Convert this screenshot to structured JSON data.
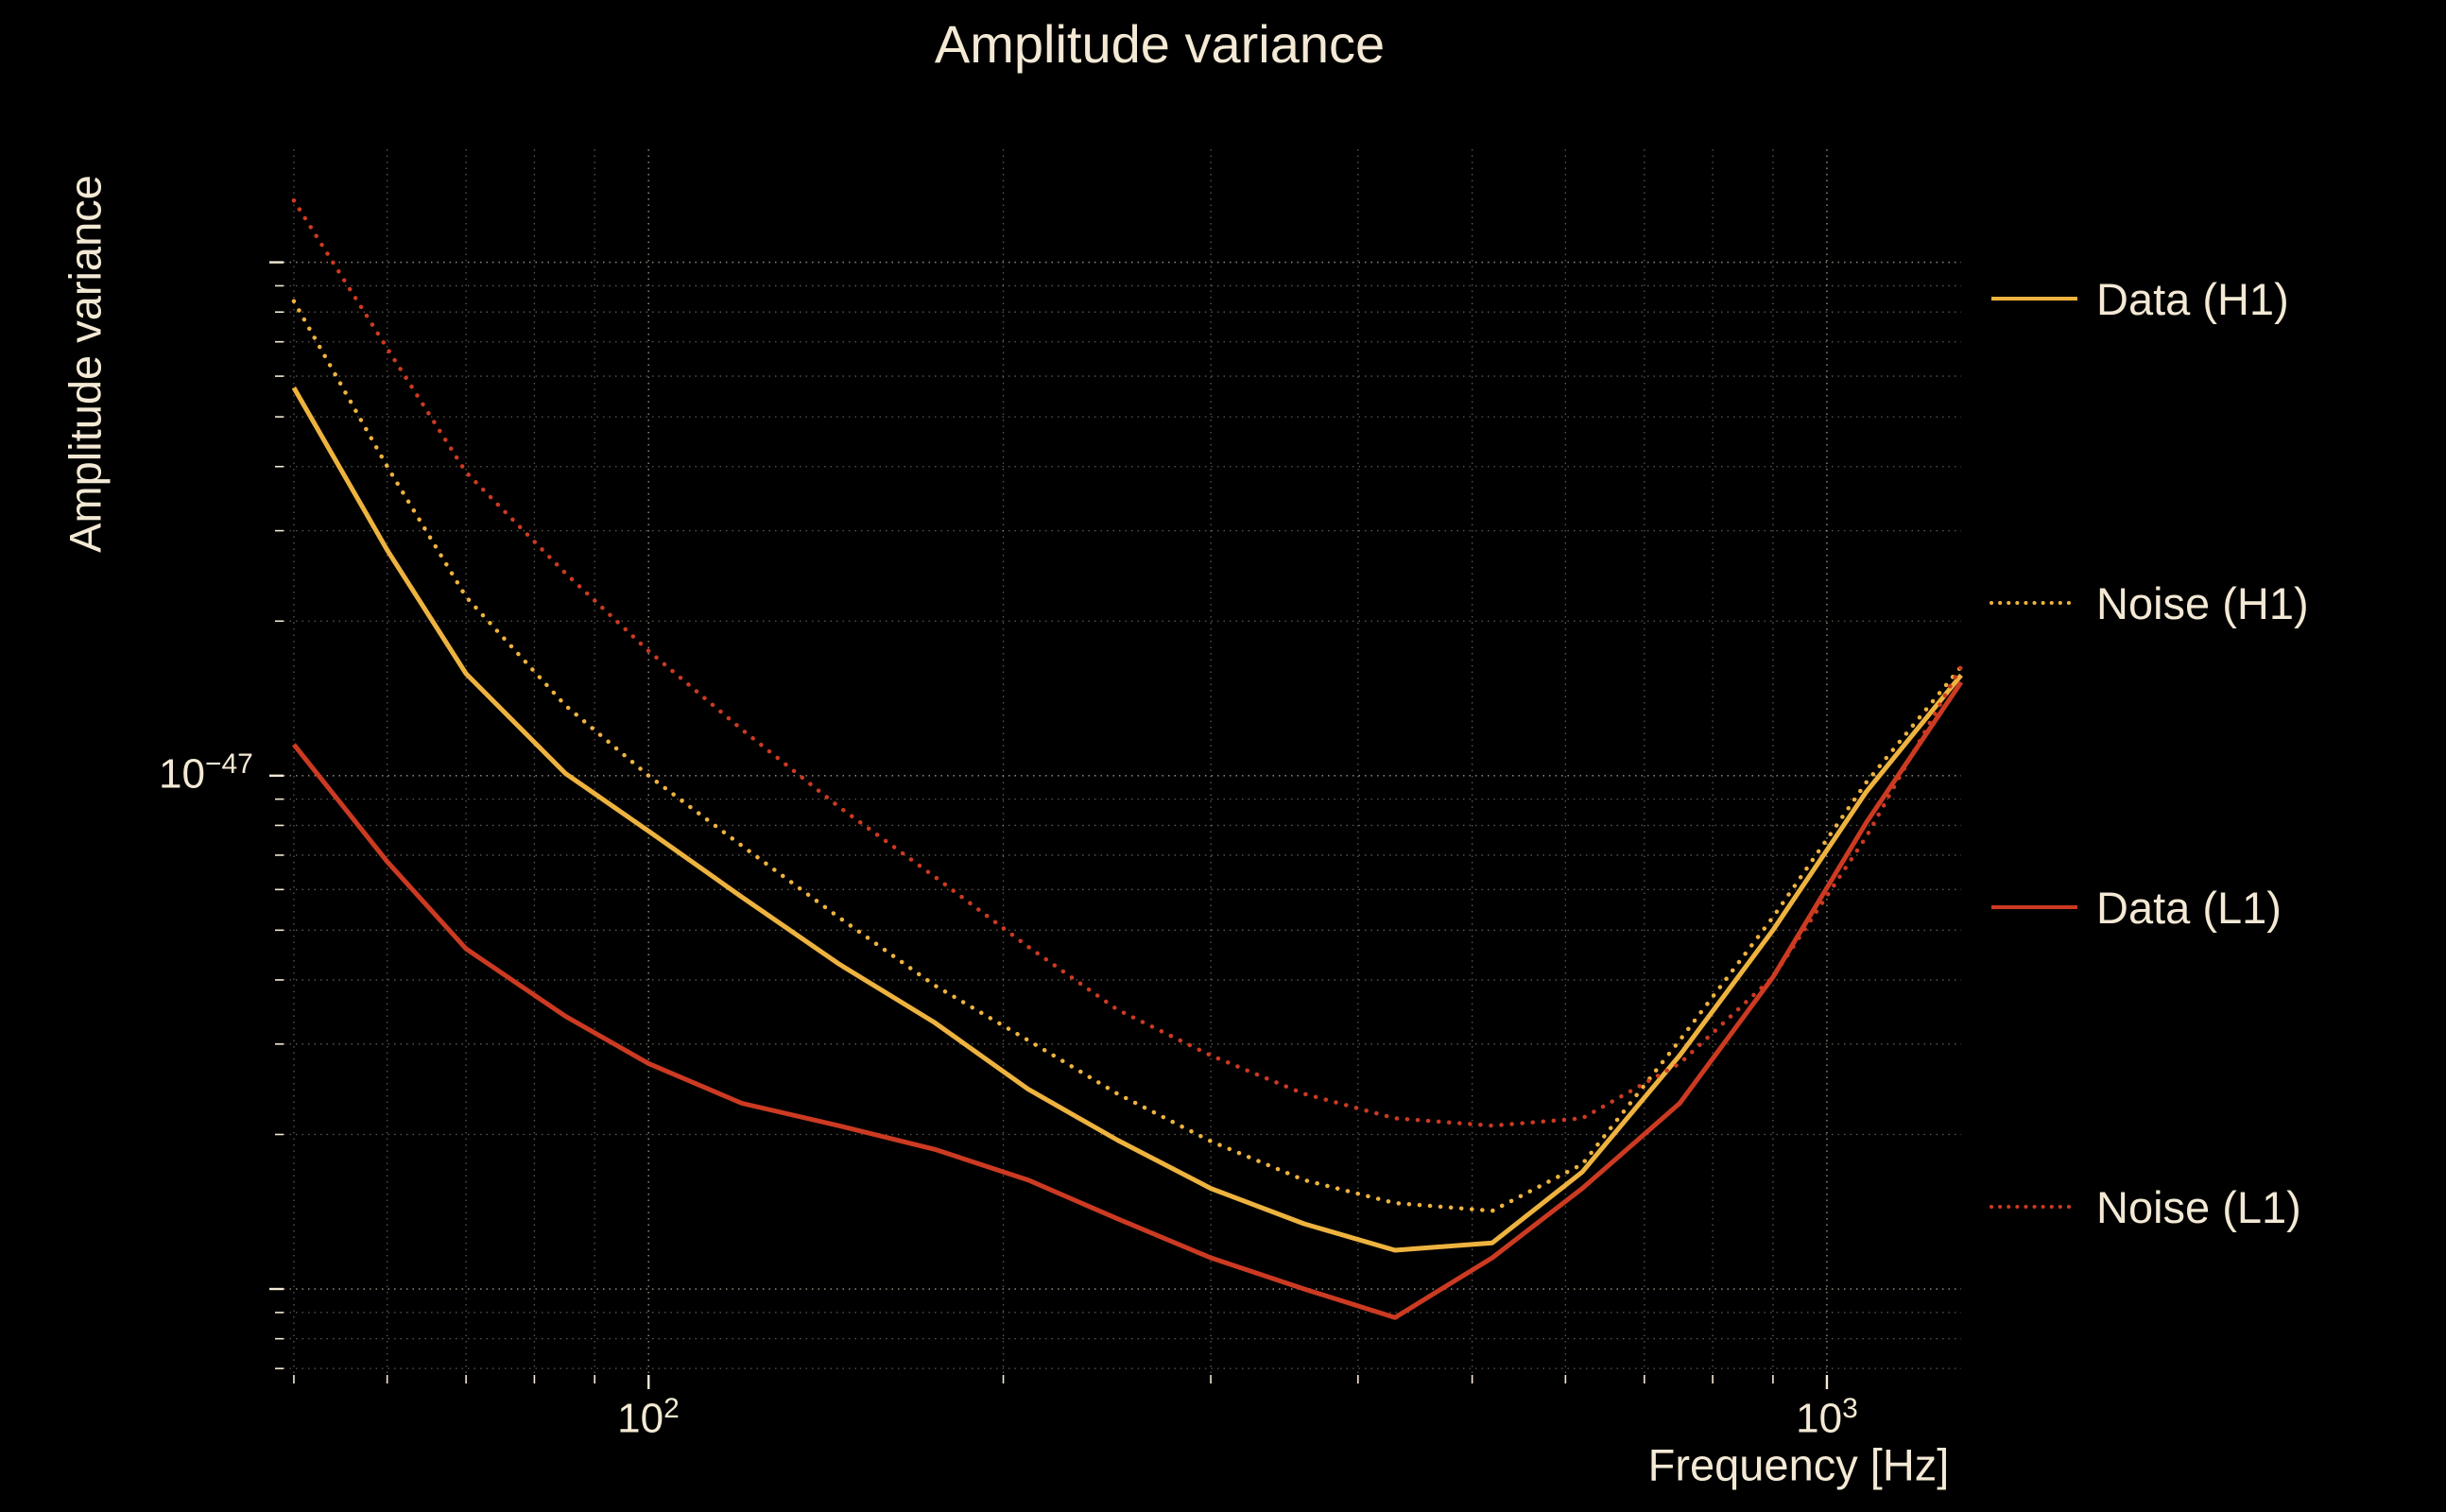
{
  "title": "Amplitude variance",
  "axes": {
    "xlabel": "Frequency [Hz]",
    "ylabel": "Amplitude variance"
  },
  "x_ticks": [
    {
      "base": "10",
      "exp": "2"
    },
    {
      "base": "10",
      "exp": "3"
    }
  ],
  "y_ticks": [
    {
      "base": "10",
      "exp": "−47"
    }
  ],
  "colors": {
    "background": "#000000",
    "text": "#f3e9d4",
    "grid": "#f3e9d4",
    "h1_color": "#eeb33f",
    "l1_color": "#cc3a22"
  },
  "legend": [
    {
      "label": "Data (H1)",
      "color": "#eeb33f",
      "linestyle": "solid"
    },
    {
      "label": "Noise (H1)",
      "color": "#eeb33f",
      "linestyle": "dotted"
    },
    {
      "label": "Data (L1)",
      "color": "#cc3a22",
      "linestyle": "solid"
    },
    {
      "label": "Noise (L1)",
      "color": "#cc3a22",
      "linestyle": "dotted"
    }
  ],
  "chart_data": {
    "type": "line",
    "title": "Amplitude variance",
    "xlabel": "Frequency [Hz]",
    "ylabel": "Amplitude variance",
    "x_scale": "log",
    "y_scale": "log",
    "xlim": [
      49,
      1300
    ],
    "ylim": [
      6.8e-49,
      1.66e-46
    ],
    "grid": true,
    "legend_position": "right",
    "x": [
      50,
      60,
      70,
      85,
      100,
      120,
      145,
      175,
      210,
      250,
      300,
      360,
      430,
      520,
      620,
      750,
      900,
      1080,
      1300
    ],
    "series": [
      {
        "name": "Data (H1)",
        "color": "#eeb33f",
        "linestyle": "solid",
        "values": [
          5.7e-47,
          2.75e-47,
          1.58e-47,
          1.01e-47,
          7.8e-48,
          5.8e-48,
          4.3e-48,
          3.3e-48,
          2.45e-48,
          1.95e-48,
          1.57e-48,
          1.34e-48,
          1.19e-48,
          1.23e-48,
          1.69e-48,
          2.85e-48,
          5e-48,
          9.3e-48,
          1.57e-47
        ]
      },
      {
        "name": "Noise (H1)",
        "color": "#eeb33f",
        "linestyle": "dotted",
        "values": [
          8.4e-47,
          4e-47,
          2.23e-47,
          1.37e-47,
          1e-47,
          7.3e-48,
          5.3e-48,
          3.9e-48,
          3.05e-48,
          2.4e-48,
          1.94e-48,
          1.63e-48,
          1.47e-48,
          1.42e-48,
          1.75e-48,
          3.05e-48,
          5.3e-48,
          9.7e-48,
          1.63e-47
        ]
      },
      {
        "name": "Data (L1)",
        "color": "#cc3a22",
        "linestyle": "solid",
        "values": [
          1.15e-47,
          6.8e-48,
          4.6e-48,
          3.4e-48,
          2.75e-48,
          2.3e-48,
          2.08e-48,
          1.87e-48,
          1.63e-48,
          1.37e-48,
          1.15e-48,
          1e-48,
          8.8e-49,
          1.15e-48,
          1.57e-48,
          2.3e-48,
          4.05e-48,
          8.1e-48,
          1.52e-47
        ]
      },
      {
        "name": "Noise (L1)",
        "color": "#cc3a22",
        "linestyle": "dotted",
        "values": [
          1.32e-46,
          6.8e-47,
          3.9e-47,
          2.48e-47,
          1.75e-47,
          1.23e-47,
          8.7e-48,
          6.35e-48,
          4.64e-48,
          3.5e-48,
          2.85e-48,
          2.4e-48,
          2.15e-48,
          2.08e-48,
          2.15e-48,
          2.75e-48,
          4.05e-48,
          7.6e-48,
          1.63e-47
        ]
      }
    ]
  }
}
